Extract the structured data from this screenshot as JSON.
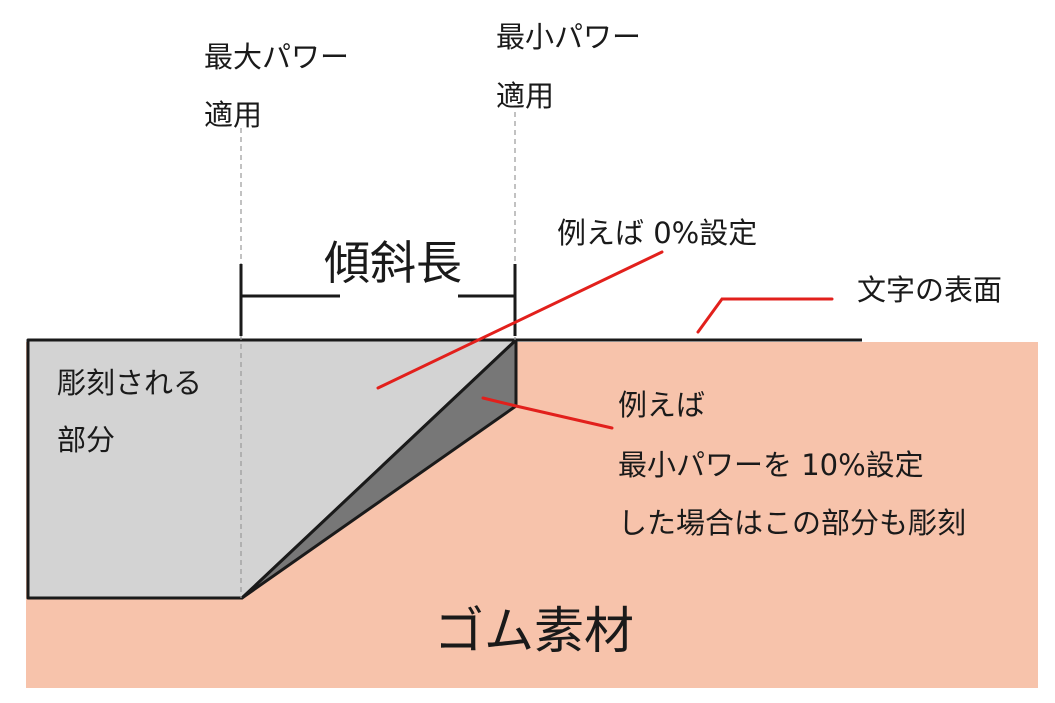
{
  "colors": {
    "rubber": "#f7c3ab",
    "engraved": "#d3d3d3",
    "slope": "#777777",
    "outline": "#1a1a1a",
    "leader": "#e2201c",
    "guide": "#999999"
  },
  "labels": {
    "max_power": [
      "最大パワー",
      "適用"
    ],
    "min_power": [
      "最小パワー",
      "適用"
    ],
    "slope_length": "傾斜長",
    "zero_setting": "例えば 0%設定",
    "text_surface": "文字の表面",
    "engraved_part": [
      "彫刻される",
      "部分"
    ],
    "ten_setting": [
      "例えば",
      "最小パワーを 10%設定",
      "した場合はこの部分も彫刻"
    ],
    "rubber_material": "ゴム素材"
  }
}
